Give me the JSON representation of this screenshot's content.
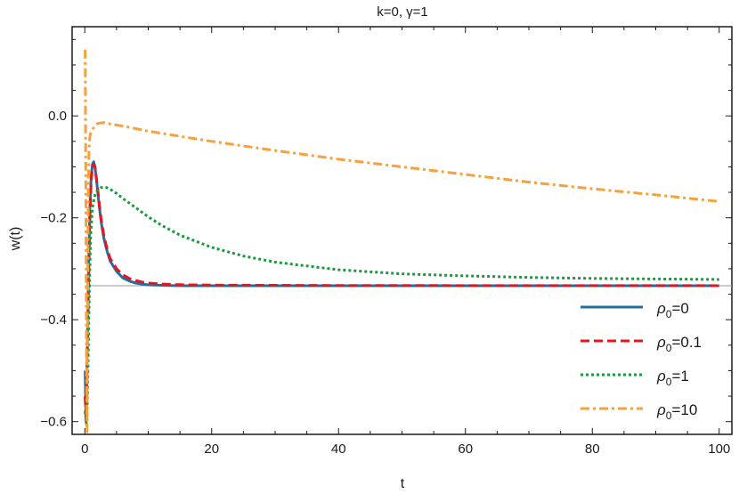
{
  "chart_data": {
    "type": "line",
    "title": "k=0, γ=1",
    "xlabel": "t",
    "ylabel": "w(t)",
    "xlim": [
      -2,
      102
    ],
    "ylim": [
      -0.625,
      0.175
    ],
    "x_ticks": [
      0,
      20,
      40,
      60,
      80,
      100
    ],
    "x_tick_labels": [
      "0",
      "20",
      "40",
      "60",
      "80",
      "100"
    ],
    "y_ticks": [
      0.0,
      -0.2,
      -0.4,
      -0.6
    ],
    "y_tick_labels": [
      "0.0",
      "−0.2",
      "−0.4",
      "−0.6"
    ],
    "reference_line": {
      "y": -0.3333,
      "color": "#999999"
    },
    "legend_position": "bottom-right",
    "series": [
      {
        "name": "ρ₀=0",
        "legend_base": "ρ",
        "legend_sub": "0",
        "legend_suffix": "=0",
        "color": "#1f6ea8",
        "dash": "solid",
        "x": [
          0.05,
          0.2,
          0.4,
          0.6,
          0.8,
          1.0,
          1.2,
          1.4,
          1.6,
          1.8,
          2.0,
          2.3,
          2.6,
          3.0,
          3.5,
          4.0,
          5.0,
          6.0,
          7.0,
          8.0,
          9.0,
          10.0,
          12.0,
          14.0,
          16.0,
          20.0,
          30.0,
          40.0,
          60.0,
          80.0,
          100.0
        ],
        "y": [
          -0.5,
          -0.6,
          -0.45,
          -0.3,
          -0.18,
          -0.12,
          -0.095,
          -0.09,
          -0.1,
          -0.12,
          -0.145,
          -0.18,
          -0.21,
          -0.24,
          -0.265,
          -0.285,
          -0.305,
          -0.318,
          -0.324,
          -0.328,
          -0.33,
          -0.3315,
          -0.3325,
          -0.333,
          -0.3332,
          -0.3333,
          -0.3333,
          -0.3333,
          -0.3333,
          -0.3333,
          -0.3333
        ]
      },
      {
        "name": "ρ₀=0.1",
        "legend_base": "ρ",
        "legend_sub": "0",
        "legend_suffix": "=0.1",
        "color": "#e8151b",
        "dash": "dashed",
        "x": [
          0.05,
          0.2,
          0.4,
          0.6,
          0.8,
          1.0,
          1.2,
          1.4,
          1.6,
          1.8,
          2.0,
          2.3,
          2.6,
          3.0,
          3.5,
          4.0,
          5.0,
          6.0,
          7.0,
          8.0,
          9.0,
          10.0,
          12.0,
          14.0,
          16.0,
          20.0,
          30.0,
          40.0,
          60.0,
          80.0,
          100.0
        ],
        "y": [
          -0.55,
          -0.6,
          -0.47,
          -0.32,
          -0.2,
          -0.13,
          -0.1,
          -0.095,
          -0.1,
          -0.12,
          -0.14,
          -0.175,
          -0.205,
          -0.235,
          -0.26,
          -0.28,
          -0.3,
          -0.312,
          -0.319,
          -0.323,
          -0.326,
          -0.328,
          -0.33,
          -0.331,
          -0.3315,
          -0.332,
          -0.3325,
          -0.3328,
          -0.333,
          -0.3331,
          -0.3332
        ]
      },
      {
        "name": "ρ₀=1",
        "legend_base": "ρ",
        "legend_sub": "0",
        "legend_suffix": "=1",
        "color": "#1a9a3a",
        "dash": "dotted",
        "x": [
          0.05,
          0.3,
          0.5,
          0.7,
          0.9,
          1.2,
          1.6,
          2.0,
          2.5,
          3.0,
          3.5,
          4.0,
          5.0,
          6.0,
          8.0,
          10.0,
          12.0,
          15.0,
          20.0,
          25.0,
          30.0,
          40.0,
          50.0,
          60.0,
          70.0,
          80.0,
          90.0,
          100.0
        ],
        "y": [
          -0.58,
          -0.61,
          -0.5,
          -0.35,
          -0.24,
          -0.18,
          -0.155,
          -0.146,
          -0.141,
          -0.14,
          -0.141,
          -0.144,
          -0.152,
          -0.162,
          -0.18,
          -0.198,
          -0.214,
          -0.234,
          -0.258,
          -0.275,
          -0.287,
          -0.302,
          -0.31,
          -0.314,
          -0.317,
          -0.319,
          -0.32,
          -0.321
        ]
      },
      {
        "name": "ρ₀=10",
        "legend_base": "ρ",
        "legend_sub": "0",
        "legend_suffix": "=10",
        "color": "#f7a13c",
        "dash": "dashdot",
        "x": [
          0.05,
          0.15,
          0.25,
          0.35,
          0.45,
          0.55,
          0.65,
          0.8,
          1.0,
          1.3,
          1.7,
          2.0,
          2.5,
          3.0,
          4.0,
          5.0,
          6.0,
          8.0,
          10.0,
          15.0,
          20.0,
          30.0,
          40.0,
          50.0,
          60.0,
          70.0,
          80.0,
          90.0,
          100.0
        ],
        "y": [
          0.13,
          -0.1,
          -0.45,
          -0.62,
          -0.35,
          -0.15,
          -0.07,
          -0.04,
          -0.03,
          -0.025,
          -0.018,
          -0.015,
          -0.014,
          -0.013,
          -0.016,
          -0.018,
          -0.02,
          -0.025,
          -0.03,
          -0.04,
          -0.05,
          -0.068,
          -0.085,
          -0.1,
          -0.115,
          -0.13,
          -0.143,
          -0.155,
          -0.168
        ]
      }
    ]
  }
}
